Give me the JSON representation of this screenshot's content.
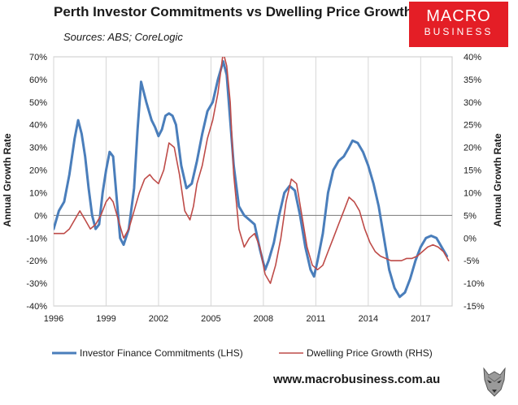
{
  "header": {
    "title": "Perth Investor Commitments vs Dwelling Price Growth",
    "sources": "Sources: ABS; CoreLogic"
  },
  "logo": {
    "line1": "MACRO",
    "line2": "BUSINESS",
    "color": "#e41e26"
  },
  "footer": {
    "url": "www.macrobusiness.com.au"
  },
  "colors": {
    "investor": "#4a7ebb",
    "price": "#be4b48"
  },
  "chart_data": {
    "type": "line",
    "title": "Perth Investor Commitments vs Dwelling Price Growth",
    "xlabel": "",
    "ylabel_left": "Annual Growth Rate",
    "ylabel_right": "Annual Growth Rate",
    "xlim": [
      1996,
      2018.8
    ],
    "ylim_left": [
      -40,
      70
    ],
    "ylim_right": [
      -15,
      40
    ],
    "x_ticks": [
      1996,
      1999,
      2002,
      2005,
      2008,
      2011,
      2014,
      2017
    ],
    "x_tick_labels": [
      "1996",
      "1999",
      "2002",
      "2005",
      "2008",
      "2011",
      "2014",
      "2017"
    ],
    "y_ticks_left": [
      70,
      60,
      50,
      40,
      30,
      20,
      10,
      0,
      -10,
      -20,
      -30,
      -40
    ],
    "y_tick_labels_left": [
      "70%",
      "60%",
      "50%",
      "40%",
      "30%",
      "20%",
      "10%",
      "0%",
      "-10%",
      "-20%",
      "-30%",
      "-40%"
    ],
    "y_ticks_right": [
      40,
      35,
      30,
      25,
      20,
      15,
      10,
      5,
      0,
      -5,
      -10,
      -15
    ],
    "y_tick_labels_right": [
      "40%",
      "35%",
      "30%",
      "25%",
      "20%",
      "15%",
      "10%",
      "5%",
      "0%",
      "-5%",
      "-10%",
      "-15%"
    ],
    "legend_position": "bottom",
    "series": [
      {
        "name": "Investor Finance Commitments (LHS)",
        "axis": "left",
        "x": [
          1996.0,
          1996.3,
          1996.6,
          1996.9,
          1997.2,
          1997.4,
          1997.6,
          1997.8,
          1998.0,
          1998.2,
          1998.4,
          1998.6,
          1998.8,
          1999.0,
          1999.2,
          1999.4,
          1999.6,
          1999.8,
          2000.0,
          2000.3,
          2000.6,
          2000.8,
          2001.0,
          2001.3,
          2001.6,
          2001.8,
          2002.0,
          2002.2,
          2002.4,
          2002.6,
          2002.8,
          2003.0,
          2003.3,
          2003.6,
          2003.9,
          2004.2,
          2004.5,
          2004.8,
          2005.1,
          2005.4,
          2005.7,
          2005.9,
          2006.1,
          2006.3,
          2006.6,
          2006.9,
          2007.2,
          2007.5,
          2007.8,
          2008.1,
          2008.3,
          2008.6,
          2008.9,
          2009.2,
          2009.5,
          2009.8,
          2010.1,
          2010.4,
          2010.7,
          2010.9,
          2011.1,
          2011.4,
          2011.7,
          2012.0,
          2012.3,
          2012.6,
          2012.9,
          2013.1,
          2013.4,
          2013.7,
          2014.0,
          2014.3,
          2014.6,
          2014.9,
          2015.2,
          2015.5,
          2015.8,
          2016.1,
          2016.4,
          2016.7,
          2017.0,
          2017.3,
          2017.6,
          2017.9,
          2018.2,
          2018.5
        ],
        "y": [
          -6,
          2,
          6,
          18,
          34,
          42,
          36,
          26,
          12,
          0,
          -6,
          -4,
          10,
          20,
          28,
          26,
          8,
          -10,
          -13,
          -6,
          12,
          38,
          59,
          50,
          42,
          39,
          35,
          38,
          44,
          45,
          44,
          40,
          22,
          12,
          14,
          24,
          36,
          46,
          50,
          60,
          68,
          62,
          42,
          22,
          4,
          0,
          -2,
          -4,
          -15,
          -24,
          -20,
          -12,
          0,
          10,
          13,
          11,
          0,
          -14,
          -24,
          -27,
          -20,
          -8,
          10,
          20,
          24,
          26,
          30,
          33,
          32,
          28,
          22,
          14,
          4,
          -10,
          -24,
          -32,
          -36,
          -34,
          -28,
          -20,
          -14,
          -10,
          -9,
          -10,
          -14,
          -18
        ]
      },
      {
        "name": "Dwelling Price Growth (RHS)",
        "axis": "right",
        "x": [
          1996.0,
          1996.3,
          1996.6,
          1996.9,
          1997.2,
          1997.5,
          1997.8,
          1998.1,
          1998.4,
          1998.7,
          1999.0,
          1999.2,
          1999.4,
          1999.7,
          2000.0,
          2000.3,
          2000.6,
          2000.9,
          2001.2,
          2001.5,
          2001.7,
          2002.0,
          2002.3,
          2002.6,
          2002.9,
          2003.2,
          2003.5,
          2003.8,
          2004.0,
          2004.2,
          2004.5,
          2004.8,
          2005.1,
          2005.4,
          2005.7,
          2005.9,
          2006.1,
          2006.3,
          2006.6,
          2006.9,
          2007.2,
          2007.5,
          2007.8,
          2008.1,
          2008.4,
          2008.7,
          2009.0,
          2009.3,
          2009.6,
          2009.9,
          2010.2,
          2010.5,
          2010.8,
          2011.1,
          2011.4,
          2011.7,
          2012.0,
          2012.3,
          2012.6,
          2012.9,
          2013.2,
          2013.5,
          2013.8,
          2014.1,
          2014.4,
          2014.7,
          2015.0,
          2015.3,
          2015.6,
          2015.9,
          2016.2,
          2016.5,
          2016.8,
          2017.1,
          2017.4,
          2017.7,
          2018.0,
          2018.3,
          2018.6
        ],
        "y": [
          1,
          1,
          1,
          2,
          4,
          6,
          4,
          2,
          3,
          5,
          8,
          9,
          8,
          4,
          0,
          2,
          6,
          10,
          13,
          14,
          13,
          12,
          15,
          21,
          20,
          14,
          6,
          4,
          7,
          12,
          16,
          22,
          26,
          32,
          41,
          38,
          30,
          14,
          2,
          -2,
          0,
          1,
          -2,
          -8,
          -10,
          -6,
          0,
          8,
          13,
          12,
          5,
          -2,
          -6,
          -7,
          -6,
          -3,
          0,
          3,
          6,
          9,
          8,
          6,
          2,
          -1,
          -3,
          -4,
          -4.5,
          -5,
          -5,
          -5,
          -4.5,
          -4.5,
          -4,
          -3,
          -2,
          -1.5,
          -2,
          -3,
          -5
        ]
      }
    ]
  }
}
